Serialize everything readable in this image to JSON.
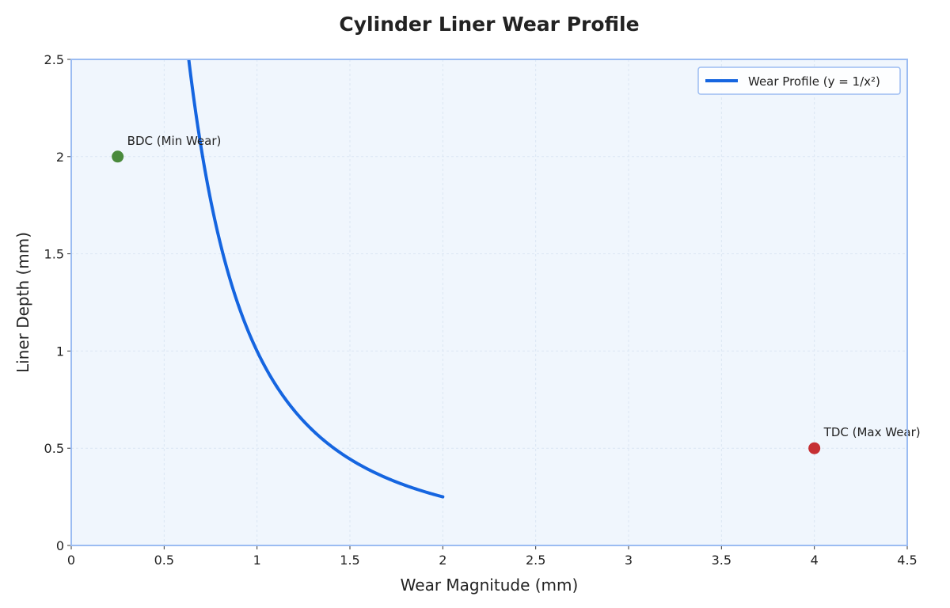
{
  "colors": {
    "plot_background": "#f0f6fd",
    "frame": "#9bbcf2",
    "grid": "#dbe6f3",
    "curve": "#1565e0",
    "bdc_point": "#4a8a3c",
    "tdc_point": "#c62f33"
  },
  "chart_data": {
    "type": "line",
    "title": "Cylinder Liner Wear Profile",
    "xlabel": "Wear Magnitude (mm)",
    "ylabel": "Liner Depth (mm)",
    "xlim": [
      0,
      4.5
    ],
    "ylim": [
      0,
      2.5
    ],
    "x_ticks": [
      0,
      0.5,
      1,
      1.5,
      2,
      2.5,
      3,
      3.5,
      4,
      4.5
    ],
    "x_tick_labels": [
      "0",
      "0.5",
      "1",
      "1.5",
      "2",
      "2.5",
      "3",
      "3.5",
      "4",
      "4.5"
    ],
    "y_ticks": [
      0,
      0.5,
      1,
      1.5,
      2,
      2.5
    ],
    "y_tick_labels": [
      "0",
      "0.5",
      "1",
      "1.5",
      "2",
      "2.5"
    ],
    "grid": true,
    "legend_position": "top-right",
    "series": [
      {
        "name": "Wear Profile (y = 1/x²)",
        "x_range": [
          0.63,
          2.0
        ],
        "function": "1/x^2"
      }
    ],
    "annotations": [
      {
        "label": "BDC (Min Wear)",
        "x": 0.25,
        "y": 2.0,
        "color": "bdc_point"
      },
      {
        "label": "TDC (Max Wear)",
        "x": 4.0,
        "y": 0.5,
        "color": "tdc_point"
      }
    ]
  }
}
